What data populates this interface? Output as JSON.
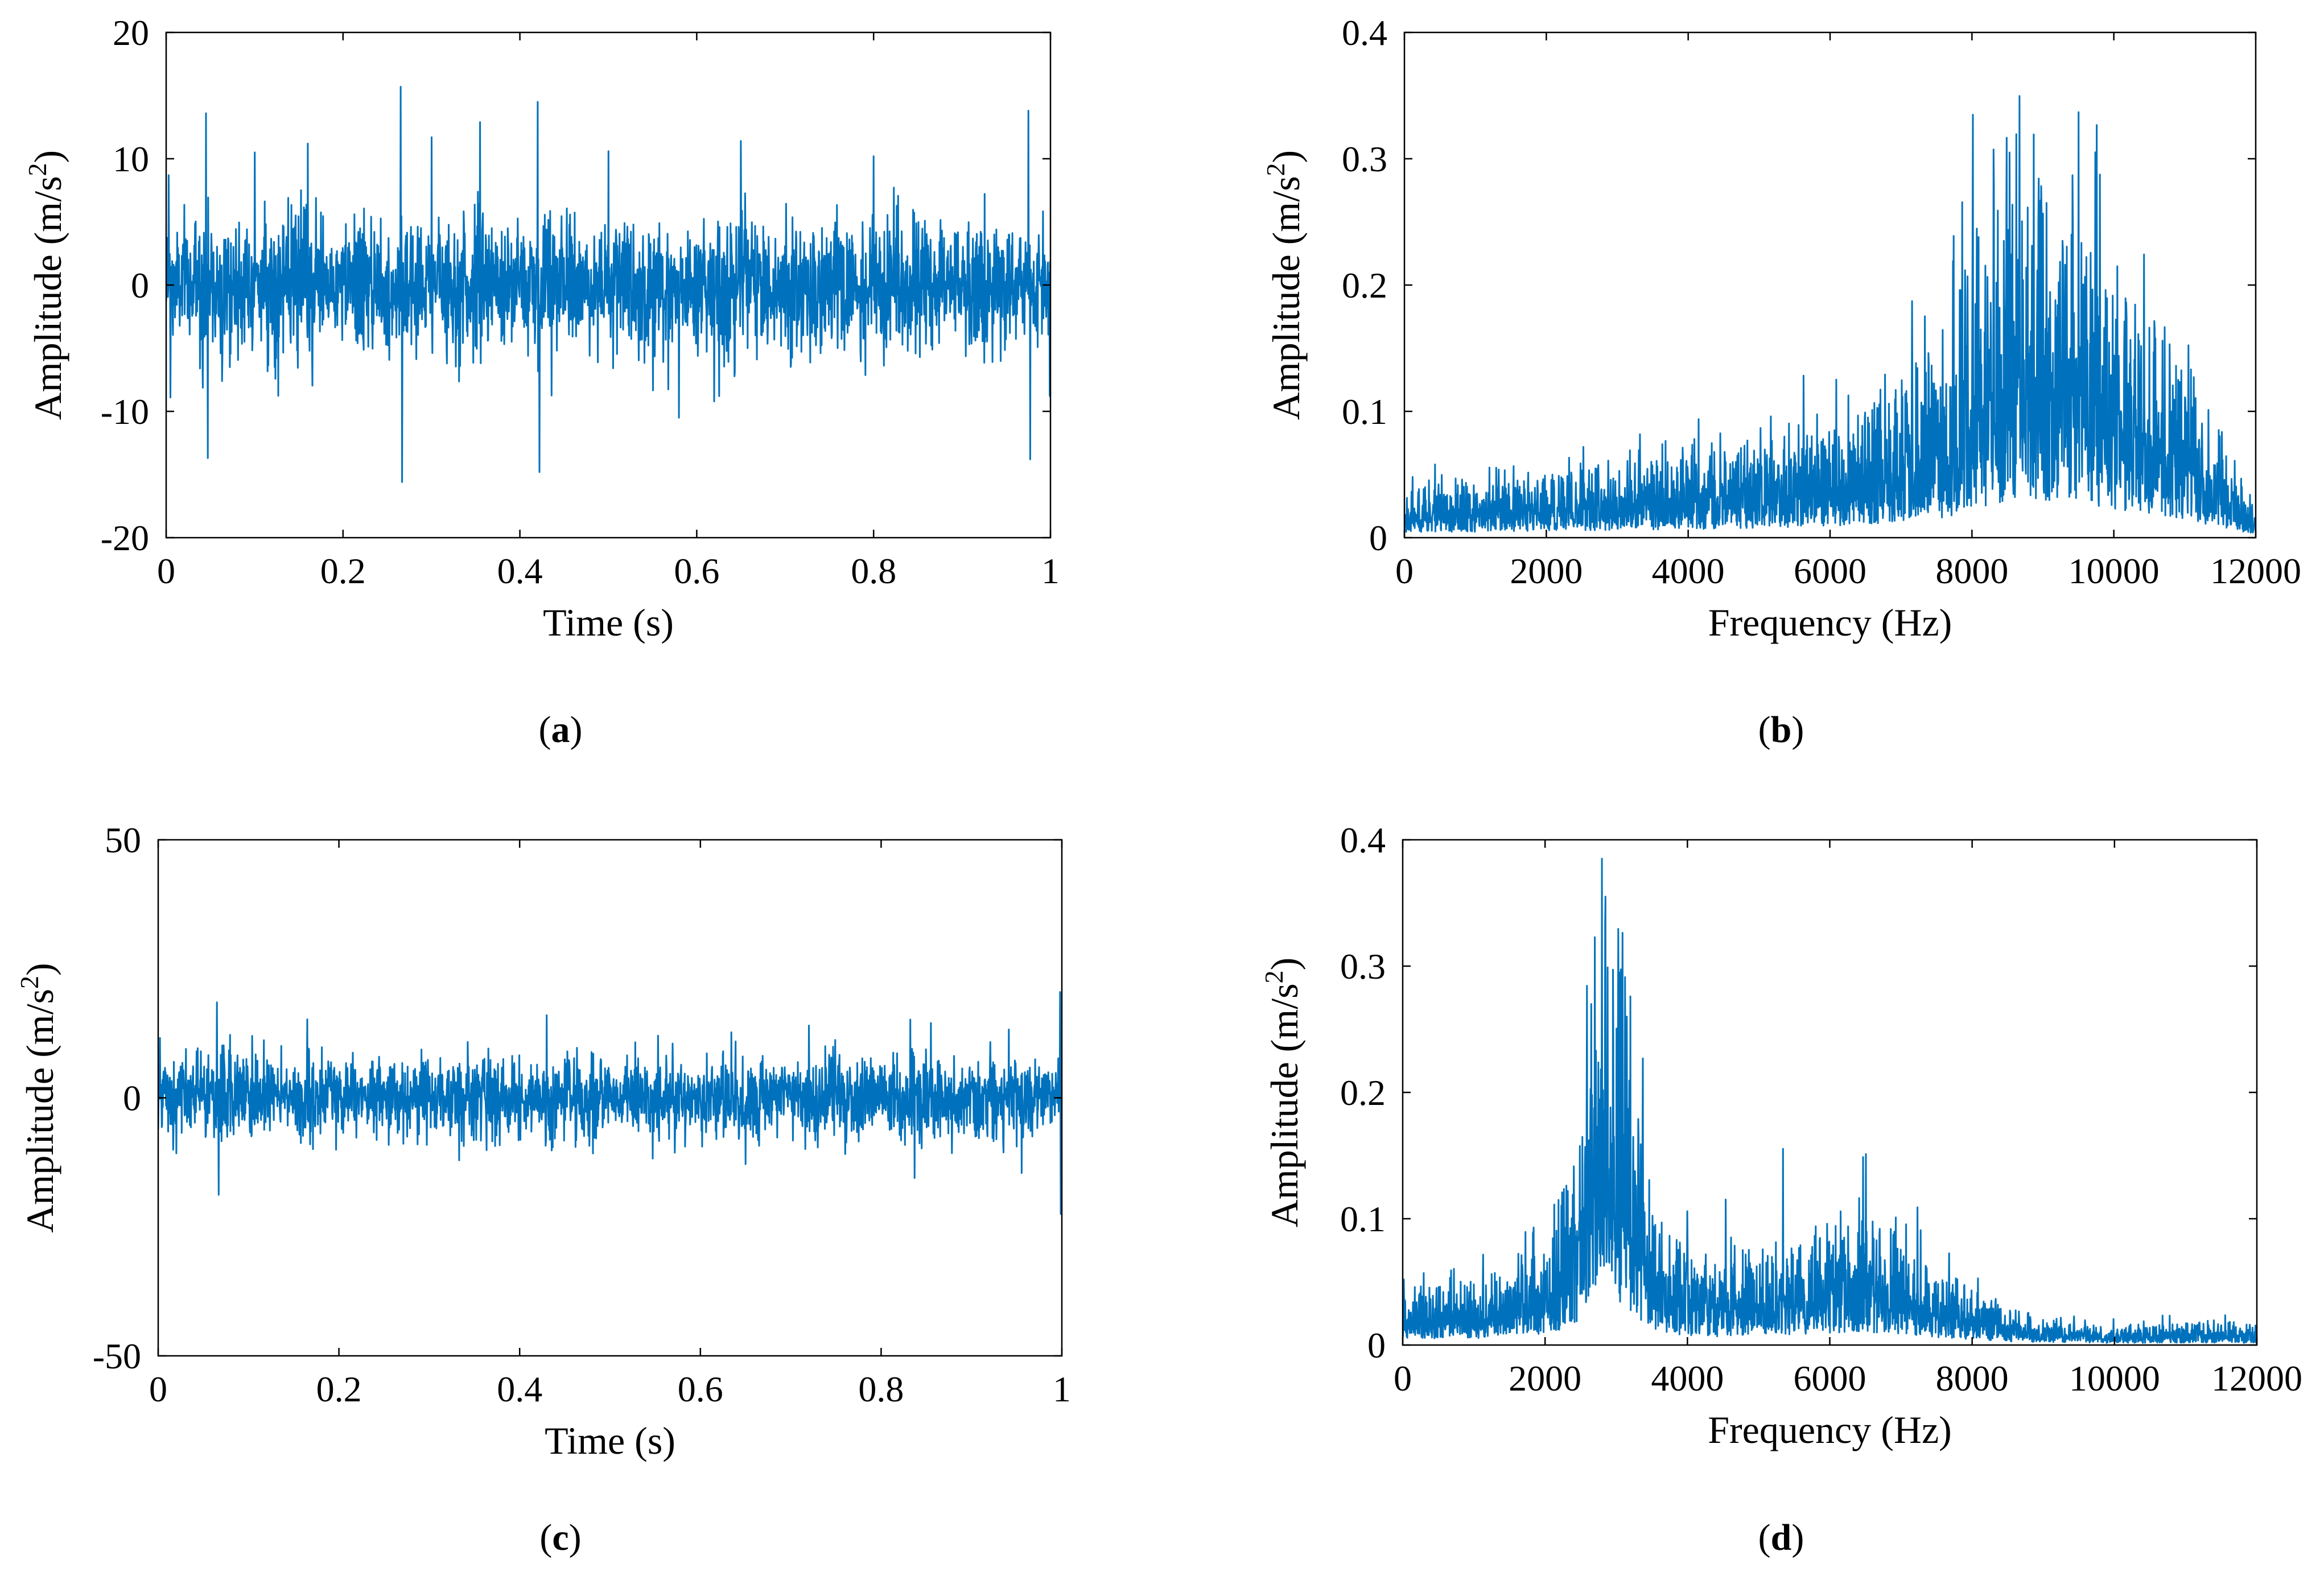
{
  "figure": {
    "panel_labels": [
      "a",
      "b",
      "c",
      "d"
    ]
  },
  "colors": {
    "signal": "#0072BD",
    "axis": "#000000",
    "background": "#ffffff"
  },
  "chart_data": [
    {
      "id": "a",
      "type": "line",
      "description_kind": "time-domain vibration signal",
      "xlabel": "Time (s)",
      "ylabel_main": "Amplitude (m/s",
      "ylabel_sup": "2",
      "ylabel_end": ")",
      "xlim": [
        0,
        1
      ],
      "ylim": [
        -20,
        20
      ],
      "xticks": [
        0,
        0.2,
        0.4,
        0.6,
        0.8,
        1
      ],
      "xtick_labels": [
        "0",
        "0.2",
        "0.4",
        "0.6",
        "0.8",
        "1"
      ],
      "yticks": [
        -20,
        -10,
        0,
        10,
        20
      ],
      "ytick_labels": [
        "-20",
        "-10",
        "0",
        "10",
        "20"
      ],
      "signal_model": {
        "kind": "noise",
        "baseline": 0,
        "amplitude": 4.5,
        "spikes": [
          {
            "x": 0.045,
            "value": 13.6
          },
          {
            "x": 0.047,
            "value": -13.7
          },
          {
            "x": 0.1,
            "value": 10.5
          },
          {
            "x": 0.16,
            "value": 11.2
          },
          {
            "x": 0.265,
            "value": 15.7
          },
          {
            "x": 0.267,
            "value": -15.6
          },
          {
            "x": 0.3,
            "value": 11.7
          },
          {
            "x": 0.355,
            "value": 12.9
          },
          {
            "x": 0.42,
            "value": 14.5
          },
          {
            "x": 0.422,
            "value": -14.8
          },
          {
            "x": 0.5,
            "value": 10.6
          },
          {
            "x": 0.58,
            "value": -10.5
          },
          {
            "x": 0.65,
            "value": 11.4
          },
          {
            "x": 0.8,
            "value": 10.2
          },
          {
            "x": 0.975,
            "value": 13.8
          },
          {
            "x": 0.977,
            "value": -13.8
          },
          {
            "x": 0.003,
            "value": 8.7
          },
          {
            "x": 0.005,
            "value": -8.9
          }
        ]
      }
    },
    {
      "id": "b",
      "type": "line",
      "description_kind": "frequency spectrum",
      "xlabel": "Frequency (Hz)",
      "ylabel_main": "Amplitude (m/s",
      "ylabel_sup": "2",
      "ylabel_end": ")",
      "xlim": [
        0,
        12000
      ],
      "ylim": [
        0,
        0.4
      ],
      "xticks": [
        0,
        2000,
        4000,
        6000,
        8000,
        10000,
        12000
      ],
      "xtick_labels": [
        "0",
        "2000",
        "4000",
        "6000",
        "8000",
        "10000",
        "12000"
      ],
      "yticks": [
        0,
        0.1,
        0.2,
        0.3,
        0.4
      ],
      "ytick_labels": [
        "0",
        "0.1",
        "0.2",
        "0.3",
        "0.4"
      ],
      "envelope": {
        "x": [
          0,
          1000,
          2000,
          3000,
          4000,
          5000,
          6000,
          6500,
          7000,
          7500,
          7800,
          8000,
          8500,
          9000,
          9500,
          10000,
          10500,
          11000,
          11500,
          12000
        ],
        "y": [
          0.03,
          0.03,
          0.035,
          0.04,
          0.045,
          0.05,
          0.06,
          0.07,
          0.08,
          0.1,
          0.12,
          0.16,
          0.18,
          0.2,
          0.19,
          0.15,
          0.13,
          0.1,
          0.05,
          0.02
        ]
      },
      "peaks": [
        {
          "x": 9050,
          "value": 0.265
        },
        {
          "x": 9400,
          "value": 0.24
        },
        {
          "x": 8450,
          "value": 0.235
        },
        {
          "x": 8650,
          "value": 0.22
        },
        {
          "x": 8050,
          "value": 0.185
        }
      ]
    },
    {
      "id": "c",
      "type": "line",
      "description_kind": "time-domain vibration signal",
      "xlabel": "Time (s)",
      "ylabel_main": "Amplitude (m/s",
      "ylabel_sup": "2",
      "ylabel_end": ")",
      "xlim": [
        0,
        1
      ],
      "ylim": [
        -50,
        50
      ],
      "xticks": [
        0,
        0.2,
        0.4,
        0.6,
        0.8,
        1
      ],
      "xtick_labels": [
        "0",
        "0.2",
        "0.4",
        "0.6",
        "0.8",
        "1"
      ],
      "yticks": [
        -50,
        0,
        50
      ],
      "ytick_labels": [
        "-50",
        "0",
        "50"
      ],
      "signal_model": {
        "kind": "noise",
        "baseline": 0,
        "amplitude": 7,
        "spikes": [
          {
            "x": 0.065,
            "value": 18.5
          },
          {
            "x": 0.067,
            "value": -18.8
          },
          {
            "x": 0.165,
            "value": 15.2
          },
          {
            "x": 0.43,
            "value": 16.0
          },
          {
            "x": 0.72,
            "value": 14.0
          },
          {
            "x": 0.855,
            "value": 14.5
          },
          {
            "x": 0.998,
            "value": 20.5
          },
          {
            "x": 0.999,
            "value": -22.5
          }
        ]
      }
    },
    {
      "id": "d",
      "type": "line",
      "description_kind": "frequency spectrum",
      "xlabel": "Frequency (Hz)",
      "ylabel_main": "Amplitude (m/s",
      "ylabel_sup": "2",
      "ylabel_end": ")",
      "xlim": [
        0,
        12000
      ],
      "ylim": [
        0,
        0.4
      ],
      "xticks": [
        0,
        2000,
        4000,
        6000,
        8000,
        10000,
        12000
      ],
      "xtick_labels": [
        "0",
        "2000",
        "4000",
        "6000",
        "8000",
        "10000",
        "12000"
      ],
      "yticks": [
        0,
        0.1,
        0.2,
        0.3,
        0.4
      ],
      "ytick_labels": [
        "0",
        "0.1",
        "0.2",
        "0.3",
        "0.4"
      ],
      "envelope": {
        "x": [
          0,
          1000,
          1500,
          2000,
          2400,
          2700,
          2900,
          3100,
          3300,
          3600,
          4000,
          4500,
          5000,
          5500,
          6000,
          6500,
          7000,
          7500,
          8000,
          8500,
          9000,
          9500,
          10000,
          11000,
          12000
        ],
        "y": [
          0.03,
          0.035,
          0.045,
          0.06,
          0.1,
          0.19,
          0.23,
          0.2,
          0.14,
          0.07,
          0.05,
          0.045,
          0.05,
          0.055,
          0.065,
          0.07,
          0.055,
          0.04,
          0.03,
          0.02,
          0.015,
          0.012,
          0.01,
          0.012,
          0.012
        ]
      },
      "peaks": [
        {
          "x": 2800,
          "value": 0.385
        },
        {
          "x": 2850,
          "value": 0.355
        },
        {
          "x": 3050,
          "value": 0.295
        },
        {
          "x": 2650,
          "value": 0.27
        },
        {
          "x": 3150,
          "value": 0.26
        },
        {
          "x": 6700,
          "value": 0.092
        },
        {
          "x": 6200,
          "value": 0.085
        }
      ]
    }
  ]
}
